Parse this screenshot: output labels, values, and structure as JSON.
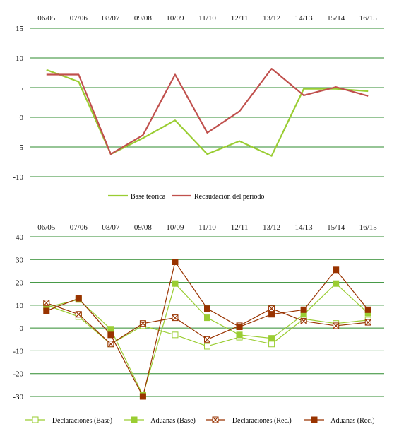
{
  "colors": {
    "grid": "#2e8b2e",
    "light_green": "#9acd32",
    "dark_red": "#c0504d",
    "brown": "#993300"
  },
  "chart_data": [
    {
      "type": "line",
      "categories": [
        "06/05",
        "07/06",
        "08/07",
        "09/08",
        "10/09",
        "11/10",
        "12/11",
        "13/12",
        "14/13",
        "15/14",
        "16/15"
      ],
      "ylim": [
        -10,
        15
      ],
      "yticks": [
        15,
        10,
        5,
        0,
        -5,
        -10
      ],
      "grid": true,
      "legend_position": "bottom",
      "series": [
        {
          "name": "Base teórica",
          "color": "#9acd32",
          "values": [
            8.0,
            6.0,
            -6.2,
            -3.5,
            -0.5,
            -6.2,
            -4.0,
            -6.5,
            4.8,
            4.8,
            4.4
          ]
        },
        {
          "name": "Recaudación del periodo",
          "color": "#c0504d",
          "values": [
            7.2,
            7.2,
            -6.2,
            -3.0,
            7.2,
            -2.6,
            1.0,
            8.2,
            3.7,
            5.1,
            3.6
          ]
        }
      ]
    },
    {
      "type": "line",
      "categories": [
        "06/05",
        "07/06",
        "08/07",
        "09/08",
        "10/09",
        "11/10",
        "12/11",
        "13/12",
        "14/13",
        "15/14",
        "16/15"
      ],
      "ylim": [
        -30,
        40
      ],
      "yticks": [
        40,
        30,
        20,
        10,
        0,
        -10,
        -20,
        -30
      ],
      "grid": true,
      "legend_position": "bottom",
      "series": [
        {
          "name": "- Declaraciones (Base)",
          "color": "#9acd32",
          "marker": "open-square",
          "values": [
            10.0,
            5.0,
            -7.0,
            1.0,
            -3.0,
            -8.0,
            -4.0,
            -7.0,
            4.0,
            2.0,
            3.5
          ]
        },
        {
          "name": "- Aduanas (Base)",
          "color": "#9acd32",
          "marker": "filled-square",
          "values": [
            9.0,
            12.5,
            -0.5,
            -29.5,
            19.5,
            4.5,
            -3.0,
            -4.5,
            6.0,
            19.5,
            6.5
          ]
        },
        {
          "name": "- Declaraciones (Rec.)",
          "color": "#993300",
          "marker": "x-square",
          "values": [
            11.0,
            6.0,
            -7.0,
            2.0,
            4.5,
            -5.0,
            1.0,
            8.5,
            3.0,
            1.0,
            2.5
          ]
        },
        {
          "name": "- Aduanas (Rec.)",
          "color": "#993300",
          "marker": "filled-square",
          "values": [
            7.5,
            13.0,
            -3.0,
            -30.0,
            29.0,
            8.5,
            0.5,
            6.0,
            8.0,
            25.5,
            8.0
          ]
        }
      ]
    }
  ]
}
